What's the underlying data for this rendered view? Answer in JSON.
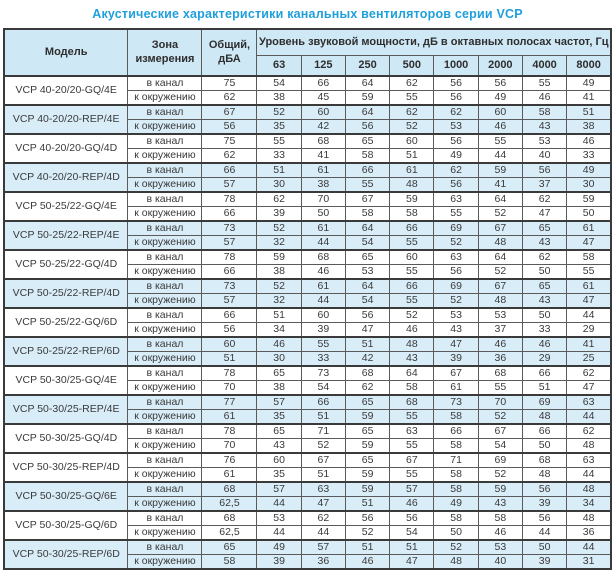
{
  "title": "Акустические характеристики канальных вентиляторов  серии VCP",
  "colors": {
    "title_accent": "#1f9fdb",
    "header_bg": "#cfe8f6",
    "tint_row_bg": "#d9edf8",
    "border": "#3a3a3a"
  },
  "table": {
    "headers": {
      "model": "Модель",
      "zone": "Зона измерения",
      "total": "Общий, дБА",
      "spectrum": "Уровень звуковой мощности, дБ в октавных полосах частот, Гц",
      "frequencies": [
        "63",
        "125",
        "250",
        "500",
        "1000",
        "2000",
        "4000",
        "8000"
      ]
    },
    "zone_labels": {
      "duct": "в канал",
      "ambient": "к окружению"
    },
    "rows": [
      {
        "model": "VCP 40-20/20-GQ/4E",
        "tint": false,
        "duct": {
          "total": "75",
          "bands": [
            "54",
            "66",
            "64",
            "62",
            "56",
            "56",
            "55",
            "49"
          ]
        },
        "ambient": {
          "total": "62",
          "bands": [
            "38",
            "45",
            "59",
            "55",
            "56",
            "49",
            "46",
            "41"
          ]
        }
      },
      {
        "model": "VCP 40-20/20-REP/4E",
        "tint": true,
        "duct": {
          "total": "67",
          "bands": [
            "52",
            "60",
            "64",
            "62",
            "62",
            "60",
            "58",
            "51"
          ]
        },
        "ambient": {
          "total": "56",
          "bands": [
            "35",
            "42",
            "56",
            "52",
            "53",
            "46",
            "43",
            "38"
          ]
        }
      },
      {
        "model": "VCP 40-20/20-GQ/4D",
        "tint": false,
        "duct": {
          "total": "75",
          "bands": [
            "55",
            "68",
            "65",
            "60",
            "56",
            "55",
            "53",
            "46"
          ]
        },
        "ambient": {
          "total": "62",
          "bands": [
            "33",
            "41",
            "58",
            "51",
            "49",
            "44",
            "40",
            "33"
          ]
        }
      },
      {
        "model": "VCP 40-20/20-REP/4D",
        "tint": true,
        "duct": {
          "total": "66",
          "bands": [
            "51",
            "61",
            "66",
            "61",
            "62",
            "59",
            "56",
            "49"
          ]
        },
        "ambient": {
          "total": "57",
          "bands": [
            "30",
            "38",
            "55",
            "48",
            "56",
            "41",
            "37",
            "30"
          ]
        }
      },
      {
        "model": "VCP 50-25/22-GQ/4E",
        "tint": false,
        "duct": {
          "total": "78",
          "bands": [
            "62",
            "70",
            "67",
            "59",
            "63",
            "64",
            "62",
            "59"
          ]
        },
        "ambient": {
          "total": "66",
          "bands": [
            "39",
            "50",
            "58",
            "58",
            "55",
            "52",
            "47",
            "50"
          ]
        }
      },
      {
        "model": "VCP 50-25/22-REP/4E",
        "tint": true,
        "duct": {
          "total": "73",
          "bands": [
            "52",
            "61",
            "64",
            "66",
            "69",
            "67",
            "65",
            "61"
          ]
        },
        "ambient": {
          "total": "57",
          "bands": [
            "32",
            "44",
            "54",
            "55",
            "52",
            "48",
            "43",
            "47"
          ]
        }
      },
      {
        "model": "VCP 50-25/22-GQ/4D",
        "tint": false,
        "duct": {
          "total": "78",
          "bands": [
            "59",
            "68",
            "65",
            "60",
            "63",
            "64",
            "62",
            "58"
          ]
        },
        "ambient": {
          "total": "66",
          "bands": [
            "38",
            "46",
            "53",
            "55",
            "56",
            "52",
            "50",
            "55"
          ]
        }
      },
      {
        "model": "VCP 50-25/22-REP/4D",
        "tint": true,
        "duct": {
          "total": "73",
          "bands": [
            "52",
            "61",
            "64",
            "66",
            "69",
            "67",
            "65",
            "61"
          ]
        },
        "ambient": {
          "total": "57",
          "bands": [
            "32",
            "44",
            "54",
            "55",
            "52",
            "48",
            "43",
            "47"
          ]
        }
      },
      {
        "model": "VCP 50-25/22-GQ/6D",
        "tint": false,
        "duct": {
          "total": "66",
          "bands": [
            "51",
            "60",
            "56",
            "52",
            "53",
            "53",
            "50",
            "44"
          ]
        },
        "ambient": {
          "total": "56",
          "bands": [
            "34",
            "39",
            "47",
            "46",
            "43",
            "37",
            "33",
            "29"
          ]
        }
      },
      {
        "model": "VCP 50-25/22-REP/6D",
        "tint": true,
        "duct": {
          "total": "60",
          "bands": [
            "46",
            "55",
            "51",
            "48",
            "47",
            "46",
            "46",
            "41"
          ]
        },
        "ambient": {
          "total": "51",
          "bands": [
            "30",
            "33",
            "42",
            "43",
            "39",
            "36",
            "29",
            "25"
          ]
        }
      },
      {
        "model": "VCP 50-30/25-GQ/4E",
        "tint": false,
        "duct": {
          "total": "78",
          "bands": [
            "65",
            "73",
            "68",
            "64",
            "67",
            "68",
            "66",
            "62"
          ]
        },
        "ambient": {
          "total": "70",
          "bands": [
            "38",
            "54",
            "62",
            "58",
            "61",
            "55",
            "51",
            "47"
          ]
        }
      },
      {
        "model": "VCP 50-30/25-REP/4E",
        "tint": true,
        "duct": {
          "total": "77",
          "bands": [
            "57",
            "66",
            "65",
            "68",
            "73",
            "70",
            "69",
            "63"
          ]
        },
        "ambient": {
          "total": "61",
          "bands": [
            "35",
            "51",
            "59",
            "55",
            "58",
            "52",
            "48",
            "44"
          ]
        }
      },
      {
        "model": "VCP 50-30/25-GQ/4D",
        "tint": false,
        "duct": {
          "total": "78",
          "bands": [
            "65",
            "71",
            "65",
            "63",
            "66",
            "67",
            "66",
            "62"
          ]
        },
        "ambient": {
          "total": "70",
          "bands": [
            "43",
            "52",
            "59",
            "55",
            "58",
            "54",
            "50",
            "48"
          ]
        }
      },
      {
        "model": "VCP 50-30/25-REP/4D",
        "tint": false,
        "duct": {
          "total": "76",
          "bands": [
            "60",
            "67",
            "65",
            "67",
            "71",
            "69",
            "68",
            "63"
          ]
        },
        "ambient": {
          "total": "61",
          "bands": [
            "35",
            "51",
            "59",
            "55",
            "58",
            "52",
            "48",
            "44"
          ]
        }
      },
      {
        "model": "VCP 50-30/25-GQ/6E",
        "tint": true,
        "duct": {
          "total": "68",
          "bands": [
            "57",
            "63",
            "59",
            "57",
            "58",
            "59",
            "56",
            "48"
          ]
        },
        "ambient": {
          "total": "62,5",
          "bands": [
            "44",
            "47",
            "51",
            "46",
            "49",
            "43",
            "39",
            "34"
          ]
        }
      },
      {
        "model": "VCP 50-30/25-GQ/6D",
        "tint": false,
        "duct": {
          "total": "68",
          "bands": [
            "53",
            "62",
            "56",
            "56",
            "58",
            "58",
            "56",
            "48"
          ]
        },
        "ambient": {
          "total": "62,5",
          "bands": [
            "44",
            "44",
            "52",
            "54",
            "50",
            "46",
            "44",
            "36"
          ]
        }
      },
      {
        "model": "VCP 50-30/25-REP/6D",
        "tint": true,
        "duct": {
          "total": "65",
          "bands": [
            "49",
            "57",
            "51",
            "51",
            "52",
            "53",
            "50",
            "44"
          ]
        },
        "ambient": {
          "total": "58",
          "bands": [
            "39",
            "36",
            "46",
            "47",
            "48",
            "40",
            "39",
            "31"
          ]
        }
      }
    ]
  }
}
